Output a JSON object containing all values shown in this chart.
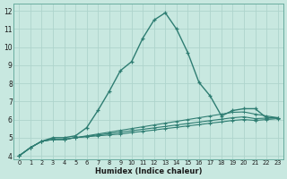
{
  "xlabel": "Humidex (Indice chaleur)",
  "bg_color": "#c8e8e0",
  "grid_color": "#aed4cc",
  "line_color": "#2e7d72",
  "xlim": [
    -0.5,
    23.5
  ],
  "ylim": [
    3.8,
    12.4
  ],
  "yticks": [
    4,
    5,
    6,
    7,
    8,
    9,
    10,
    11,
    12
  ],
  "xticks": [
    0,
    1,
    2,
    3,
    4,
    5,
    6,
    7,
    8,
    9,
    10,
    11,
    12,
    13,
    14,
    15,
    16,
    17,
    18,
    19,
    20,
    21,
    22,
    23
  ],
  "series": [
    [
      4.0,
      4.45,
      4.8,
      4.9,
      4.9,
      5.0,
      5.05,
      5.1,
      5.15,
      5.2,
      5.28,
      5.35,
      5.42,
      5.5,
      5.57,
      5.65,
      5.72,
      5.8,
      5.87,
      5.95,
      6.0,
      5.95,
      6.0,
      6.05
    ],
    [
      4.0,
      4.45,
      4.8,
      4.9,
      4.9,
      5.0,
      5.07,
      5.15,
      5.22,
      5.3,
      5.38,
      5.46,
      5.54,
      5.62,
      5.7,
      5.78,
      5.86,
      5.94,
      6.02,
      6.1,
      6.15,
      6.05,
      6.08,
      6.1
    ],
    [
      4.0,
      4.45,
      4.8,
      4.9,
      4.9,
      5.0,
      5.1,
      5.2,
      5.3,
      5.4,
      5.5,
      5.6,
      5.7,
      5.8,
      5.9,
      6.0,
      6.1,
      6.2,
      6.3,
      6.4,
      6.42,
      6.3,
      6.2,
      6.1
    ],
    [
      4.0,
      4.45,
      4.8,
      5.0,
      5.0,
      5.1,
      5.55,
      6.5,
      7.55,
      8.7,
      9.2,
      10.5,
      11.5,
      11.9,
      11.0,
      9.7,
      8.05,
      7.3,
      6.2,
      6.5,
      6.6,
      6.6,
      6.1,
      6.1
    ]
  ]
}
